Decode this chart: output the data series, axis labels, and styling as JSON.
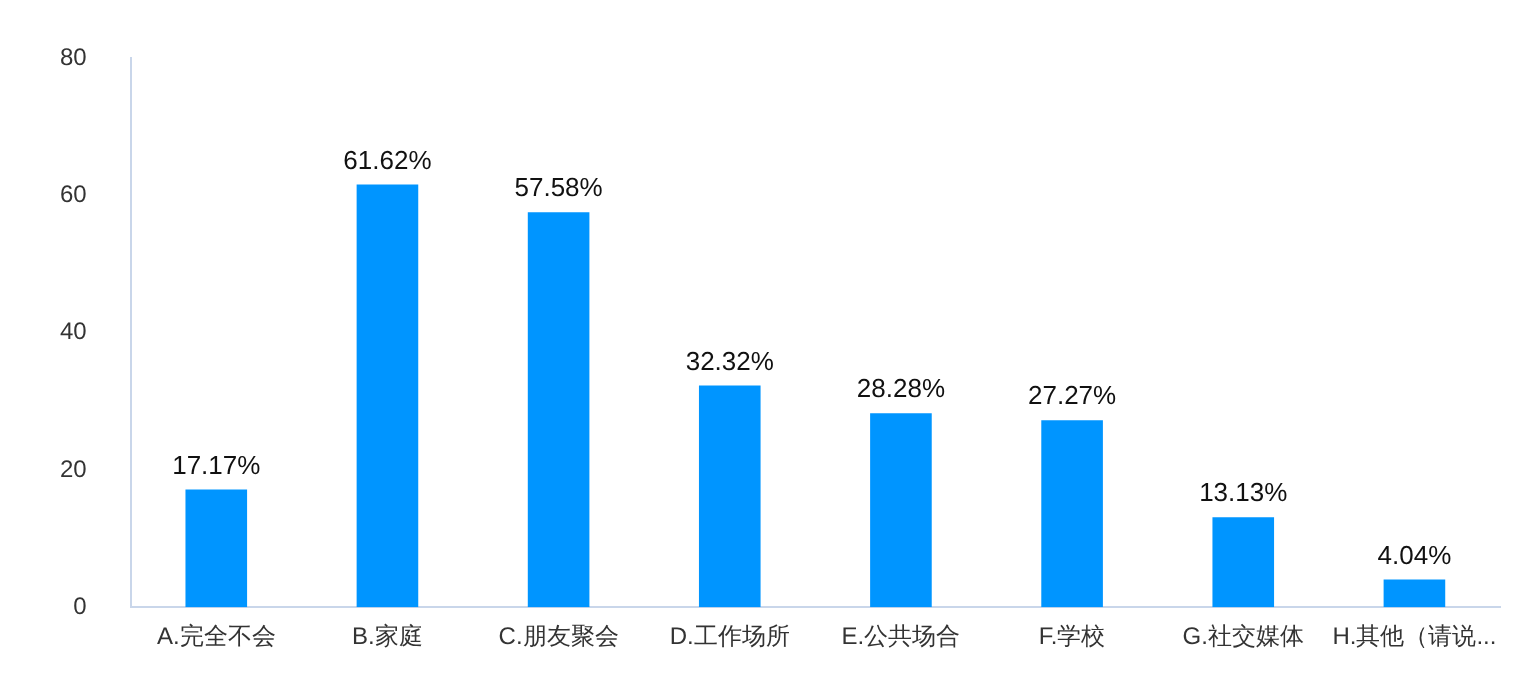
{
  "chart_data": {
    "type": "bar",
    "categories": [
      "A.完全不会",
      "B.家庭",
      "C.朋友聚会",
      "D.工作场所",
      "E.公共场合",
      "F.学校",
      "G.社交媒体",
      "H.其他（请说..."
    ],
    "values": [
      17.17,
      61.62,
      57.58,
      32.32,
      28.28,
      27.27,
      13.13,
      4.04
    ],
    "value_labels": [
      "17.17%",
      "61.62%",
      "57.58%",
      "32.32%",
      "28.28%",
      "27.27%",
      "13.13%",
      "4.04%"
    ],
    "color": "#0095ff",
    "ylim": [
      0,
      80
    ],
    "yticks": [
      0,
      20,
      40,
      60,
      80
    ],
    "grid": false,
    "legend": false
  }
}
